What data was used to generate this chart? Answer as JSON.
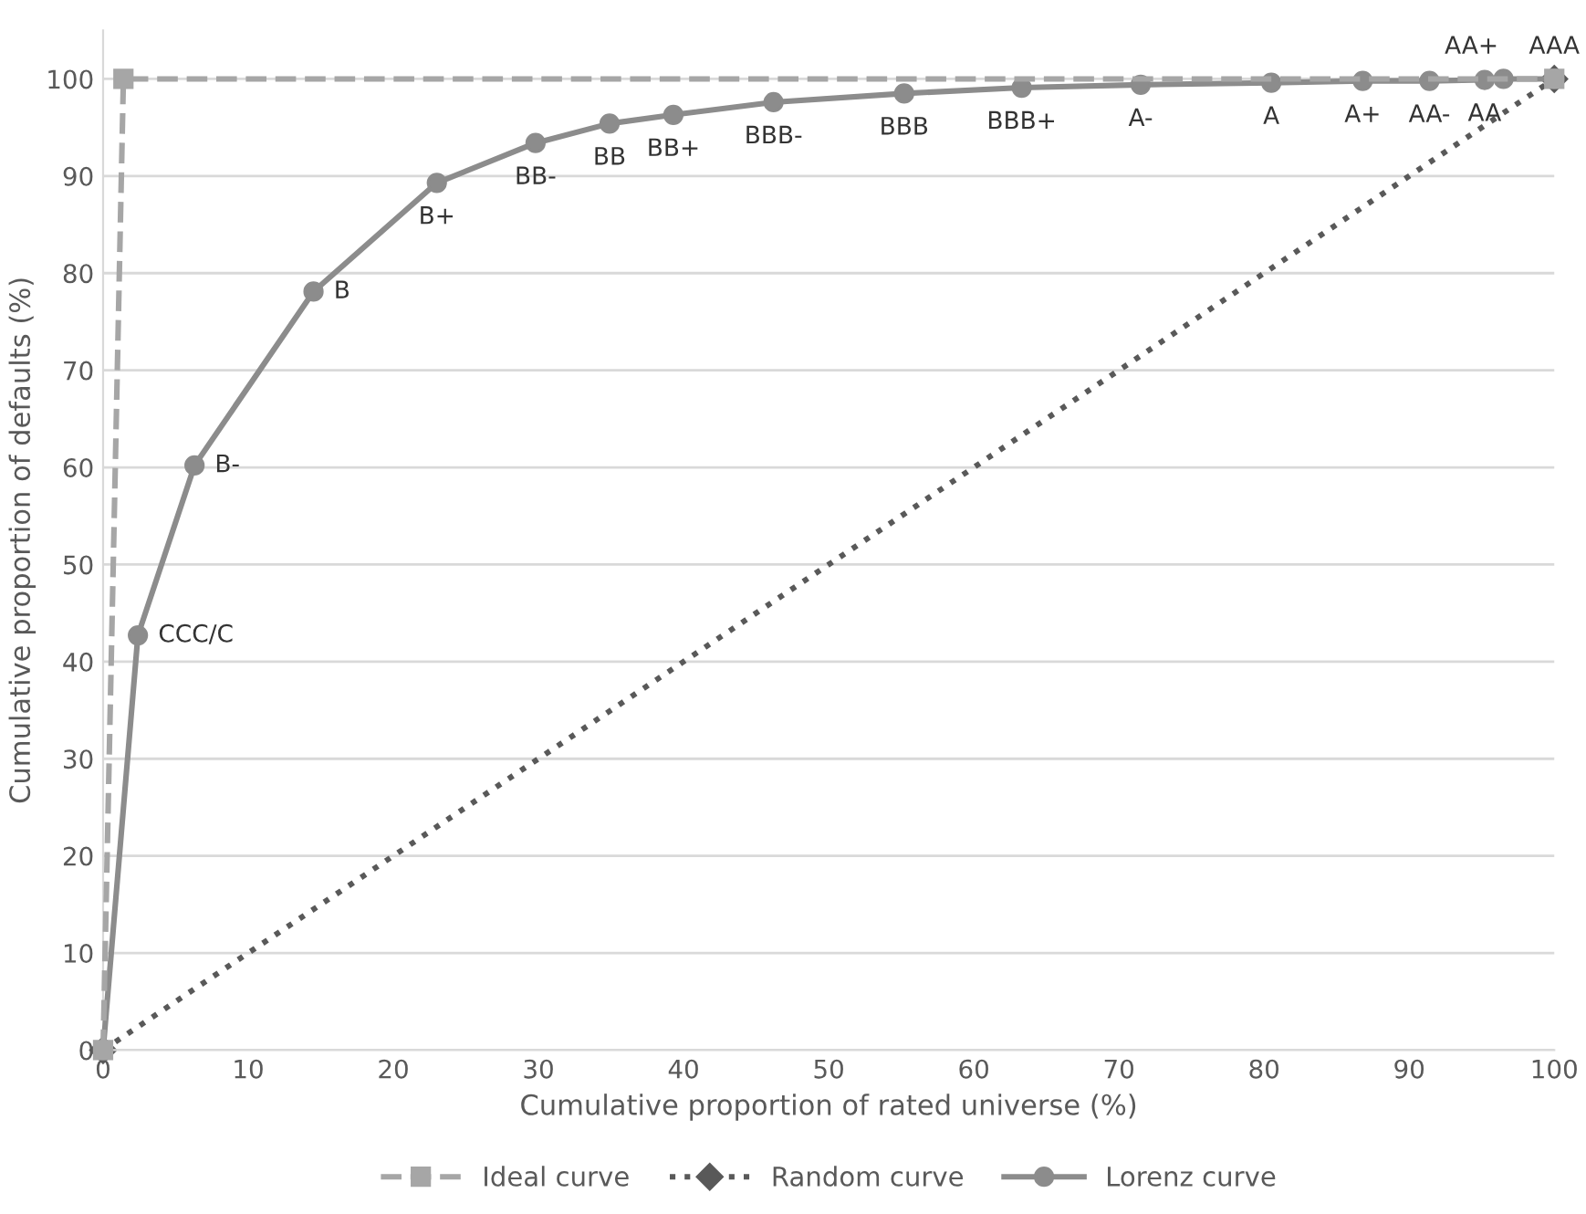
{
  "chart_data": {
    "type": "line",
    "xlabel": "Cumulative proportion of rated universe (%)",
    "ylabel": "Cumulative proportion of defaults (%)",
    "xlim": [
      0,
      100
    ],
    "ylim": [
      0,
      105
    ],
    "xticks": [
      0,
      10,
      20,
      30,
      40,
      50,
      60,
      70,
      80,
      90,
      100
    ],
    "yticks": [
      0,
      10,
      20,
      30,
      40,
      50,
      60,
      70,
      80,
      90,
      100
    ],
    "grid": "y",
    "legend": "bottom",
    "series": [
      {
        "name": "Ideal curve",
        "color": "#a6a6a6",
        "marker": "square",
        "line_style": "dashed",
        "x": [
          0,
          1.4,
          100
        ],
        "values": [
          0,
          100,
          100
        ]
      },
      {
        "name": "Random curve",
        "color": "#595959",
        "marker": "diamond",
        "line_style": "dotted",
        "x": [
          0,
          100
        ],
        "values": [
          0,
          100
        ]
      },
      {
        "name": "Lorenz curve",
        "color": "#8c8c8c",
        "marker": "circle",
        "line_style": "solid",
        "x": [
          0,
          2.4,
          6.3,
          14.5,
          23.0,
          29.8,
          34.9,
          39.3,
          46.2,
          55.2,
          63.3,
          71.5,
          80.5,
          86.8,
          91.4,
          95.2,
          96.5,
          100
        ],
        "values": [
          0,
          42.7,
          60.2,
          78.1,
          89.3,
          93.4,
          95.4,
          96.3,
          97.6,
          98.5,
          99.1,
          99.4,
          99.6,
          99.8,
          99.8,
          99.9,
          100,
          100
        ]
      }
    ],
    "annotations": [
      {
        "text": "CCC/C",
        "x": 2.4,
        "y": 42.7
      },
      {
        "text": "B-",
        "x": 6.3,
        "y": 60.2
      },
      {
        "text": "B",
        "x": 14.5,
        "y": 78.1
      },
      {
        "text": "B+",
        "x": 23.0,
        "y": 89.3
      },
      {
        "text": "BB-",
        "x": 29.8,
        "y": 93.4
      },
      {
        "text": "BB",
        "x": 34.9,
        "y": 95.4
      },
      {
        "text": "BB+",
        "x": 39.3,
        "y": 96.3
      },
      {
        "text": "BBB-",
        "x": 46.2,
        "y": 97.6
      },
      {
        "text": "BBB",
        "x": 55.2,
        "y": 98.5
      },
      {
        "text": "BBB+",
        "x": 63.3,
        "y": 99.1
      },
      {
        "text": "A-",
        "x": 71.5,
        "y": 99.4
      },
      {
        "text": "A",
        "x": 80.5,
        "y": 99.6
      },
      {
        "text": "A+",
        "x": 86.8,
        "y": 99.8
      },
      {
        "text": "AA-",
        "x": 91.4,
        "y": 99.8
      },
      {
        "text": "AA",
        "x": 95.2,
        "y": 99.9
      },
      {
        "text": "AA+",
        "x": 96.5,
        "y": 100
      },
      {
        "text": "AAA",
        "x": 100,
        "y": 100
      }
    ]
  }
}
